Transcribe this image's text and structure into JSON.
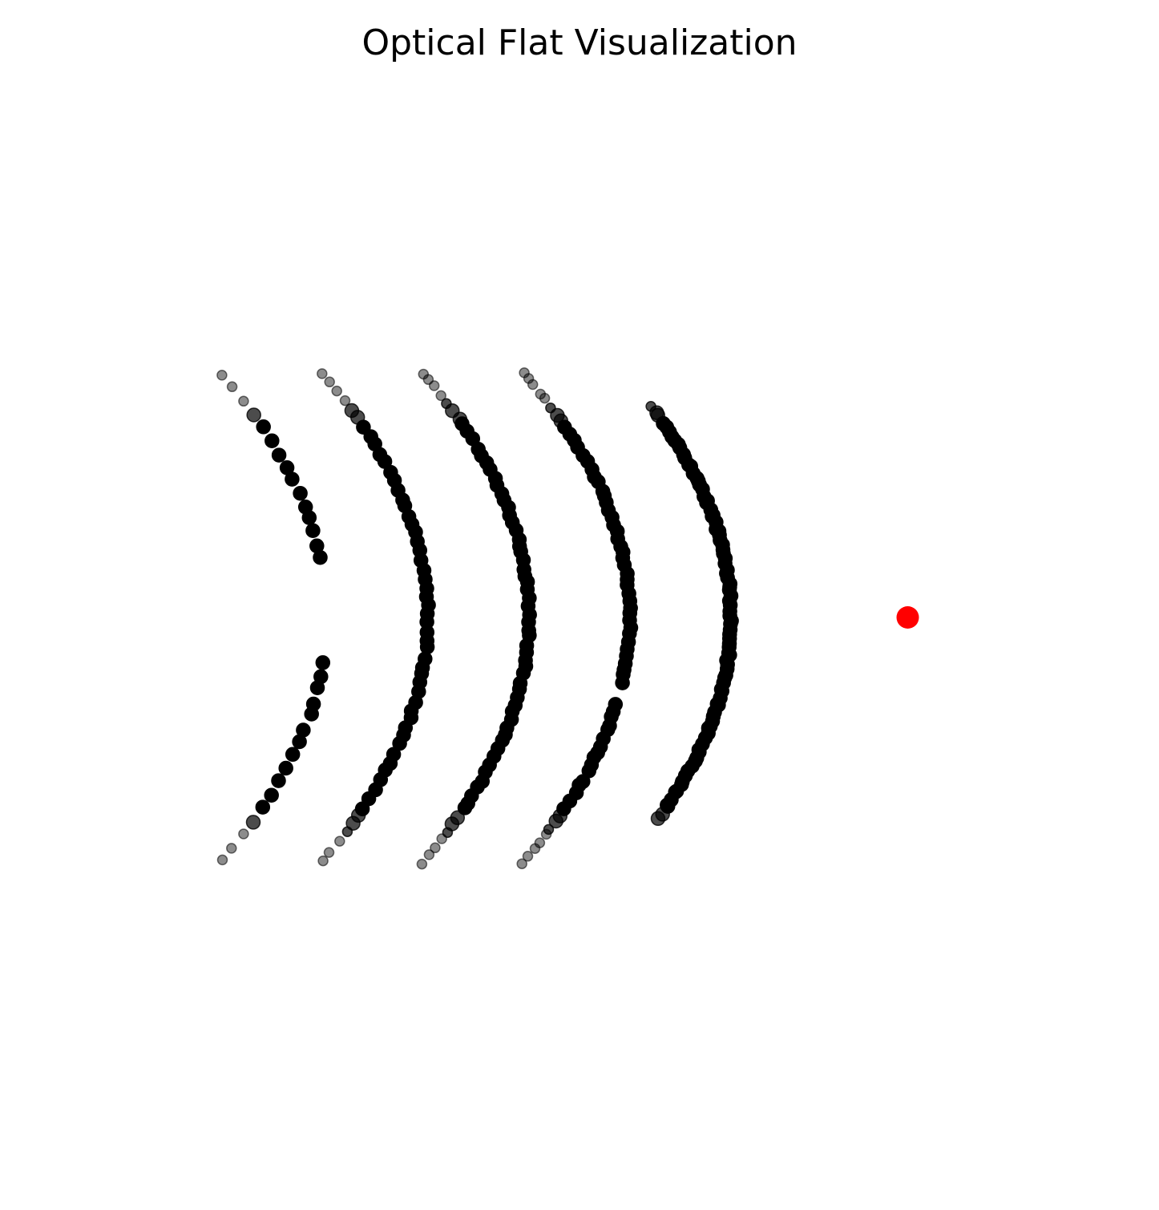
{
  "chart_data": {
    "type": "scatter",
    "title": "Optical Flat Visualization",
    "xlabel": "",
    "ylabel": "",
    "axes_visible": false,
    "grid": false,
    "xlim": [
      -1.8,
      1.8
    ],
    "ylim": [
      -1.8,
      1.8
    ],
    "colors": {
      "fringe": "#000000",
      "marker": "#ff0000"
    },
    "fringes": [
      {
        "x_at_center": -1.0,
        "curvature": 1.0,
        "y_range": [
          -0.96,
          0.96
        ],
        "y_gap": [
          -0.17,
          0.22
        ],
        "point_count": 38
      },
      {
        "x_at_center": -0.6,
        "curvature": 1.0,
        "y_range": [
          -0.96,
          0.96
        ],
        "point_count": 56
      },
      {
        "x_at_center": -0.2,
        "curvature": 1.0,
        "y_range": [
          -0.97,
          0.97
        ],
        "point_count": 66
      },
      {
        "x_at_center": 0.2,
        "curvature": 1.0,
        "y_range": [
          -0.97,
          0.97
        ],
        "y_gap": [
          -0.34,
          -0.28
        ],
        "point_count": 72
      },
      {
        "x_at_center": 0.6,
        "curvature": 1.0,
        "y_range": [
          -0.79,
          0.83
        ],
        "point_count": 90
      }
    ],
    "edge_fade": "points fade toward top and bottom edges",
    "highlight_point": {
      "x": 1.3,
      "y": 0.0,
      "color": "#ff0000"
    }
  }
}
